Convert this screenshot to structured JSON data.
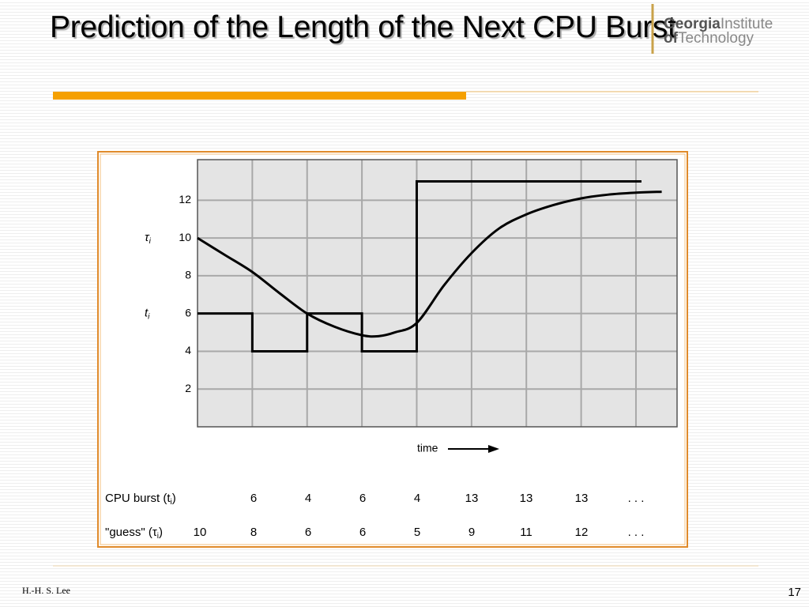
{
  "slide": {
    "title": "Prediction of the Length of the Next CPU Burst",
    "logo": {
      "line1": [
        "Georgia",
        "Institute"
      ],
      "line2": [
        "of",
        "Technology"
      ]
    },
    "author": "H.-H. S. Lee",
    "page": "17"
  },
  "chart_data": {
    "type": "line",
    "tau_label": {
      "symbol": "τ",
      "subscript": "i"
    },
    "t_label": {
      "symbol": "t",
      "subscript": "i"
    },
    "x_label": "time",
    "xlim": [
      0,
      8.75
    ],
    "ylim": [
      0,
      14.15
    ],
    "xticks": [
      1,
      2,
      3,
      4,
      5,
      6,
      7,
      8
    ],
    "yticks": [
      2,
      4,
      6,
      8,
      10,
      12
    ],
    "grid": true,
    "series": [
      {
        "name": "CPU burst",
        "color": "#000000",
        "step": "post",
        "x": [
          0,
          1,
          2,
          3,
          4,
          8.1
        ],
        "values": [
          6,
          4,
          6,
          4,
          13,
          13
        ]
      },
      {
        "name": "guess",
        "color": "#000000",
        "smooth": true,
        "x": [
          0,
          0.5,
          1,
          1.5,
          2,
          2.5,
          3,
          3.3,
          3.6,
          4,
          4.5,
          5,
          5.5,
          6,
          6.5,
          7,
          7.5,
          8,
          8.47
        ],
        "values": [
          10,
          9.1,
          8.2,
          7.07,
          6,
          5.3,
          4.85,
          4.8,
          5.0,
          5.5,
          7.5,
          9.2,
          10.5,
          11.25,
          11.75,
          12.1,
          12.3,
          12.4,
          12.45
        ]
      }
    ]
  },
  "table": {
    "rows": [
      {
        "label": [
          "CPU burst (t",
          "i",
          ")"
        ],
        "cells": [
          null,
          "6",
          "4",
          "6",
          "4",
          "13",
          "13",
          "13",
          ". . ."
        ]
      },
      {
        "label": [
          "\"guess\" (τ",
          "i",
          ")"
        ],
        "cells": [
          "10",
          "8",
          "6",
          "6",
          "5",
          "9",
          "11",
          "12",
          ". . ."
        ]
      }
    ]
  }
}
